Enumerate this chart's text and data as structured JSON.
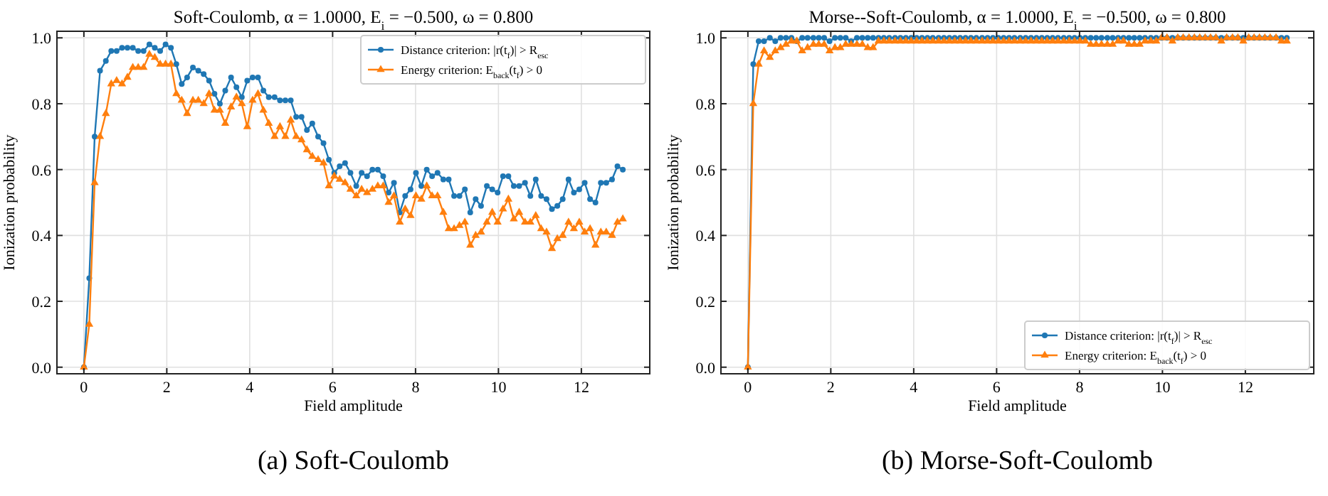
{
  "chart_data": [
    {
      "type": "line",
      "title": "Soft-Coulomb, α = 1.0000, E$_{i}$ = −0.500, ω = 0.800",
      "xlabel": "Field amplitude",
      "ylabel": "Ionization probability",
      "annotations": [
        "(a) Soft-Coulomb"
      ],
      "x": [
        0,
        0.13,
        0.26,
        0.39,
        0.53,
        0.66,
        0.79,
        0.92,
        1.05,
        1.18,
        1.31,
        1.44,
        1.58,
        1.71,
        1.84,
        1.97,
        2.1,
        2.23,
        2.36,
        2.49,
        2.63,
        2.76,
        2.89,
        3.02,
        3.15,
        3.28,
        3.41,
        3.55,
        3.68,
        3.81,
        3.94,
        4.07,
        4.2,
        4.33,
        4.46,
        4.6,
        4.73,
        4.86,
        4.99,
        5.12,
        5.25,
        5.38,
        5.51,
        5.65,
        5.78,
        5.91,
        6.04,
        6.17,
        6.3,
        6.43,
        6.57,
        6.7,
        6.83,
        6.96,
        7.09,
        7.22,
        7.35,
        7.48,
        7.62,
        7.75,
        7.88,
        8.01,
        8.14,
        8.27,
        8.4,
        8.53,
        8.67,
        8.8,
        8.93,
        9.06,
        9.19,
        9.32,
        9.45,
        9.58,
        9.72,
        9.85,
        9.98,
        10.11,
        10.24,
        10.37,
        10.5,
        10.64,
        10.77,
        10.9,
        11.03,
        11.16,
        11.29,
        11.42,
        11.55,
        11.69,
        11.82,
        11.95,
        12.08,
        12.21,
        12.34,
        12.47,
        12.6,
        12.74,
        12.87,
        13.0
      ],
      "series": [
        {
          "name": "Distance criterion: |r(t$_{f}$)| > R$_{esc}$",
          "color": "#1f77b4",
          "marker": "circle",
          "values": [
            0,
            0.27,
            0.7,
            0.9,
            0.93,
            0.96,
            0.96,
            0.97,
            0.97,
            0.97,
            0.96,
            0.96,
            0.98,
            0.97,
            0.96,
            0.98,
            0.97,
            0.92,
            0.86,
            0.88,
            0.91,
            0.9,
            0.89,
            0.87,
            0.83,
            0.8,
            0.84,
            0.88,
            0.85,
            0.82,
            0.87,
            0.88,
            0.88,
            0.84,
            0.82,
            0.82,
            0.81,
            0.81,
            0.81,
            0.76,
            0.76,
            0.72,
            0.74,
            0.7,
            0.68,
            0.63,
            0.59,
            0.61,
            0.62,
            0.59,
            0.55,
            0.59,
            0.58,
            0.6,
            0.6,
            0.58,
            0.53,
            0.56,
            0.47,
            0.52,
            0.54,
            0.59,
            0.55,
            0.6,
            0.58,
            0.59,
            0.57,
            0.57,
            0.52,
            0.52,
            0.54,
            0.47,
            0.51,
            0.49,
            0.55,
            0.54,
            0.53,
            0.58,
            0.58,
            0.55,
            0.55,
            0.56,
            0.52,
            0.57,
            0.52,
            0.51,
            0.48,
            0.49,
            0.51,
            0.57,
            0.53,
            0.54,
            0.56,
            0.51,
            0.5,
            0.56,
            0.56,
            0.57,
            0.61,
            0.6
          ]
        },
        {
          "name": "Energy criterion: E$_{back}$(t$_{f}$) > 0",
          "color": "#ff7f0e",
          "marker": "triangle",
          "values": [
            0,
            0.13,
            0.56,
            0.7,
            0.77,
            0.86,
            0.87,
            0.86,
            0.88,
            0.91,
            0.91,
            0.91,
            0.95,
            0.94,
            0.92,
            0.92,
            0.92,
            0.83,
            0.81,
            0.77,
            0.81,
            0.81,
            0.8,
            0.83,
            0.78,
            0.78,
            0.74,
            0.79,
            0.82,
            0.8,
            0.73,
            0.81,
            0.83,
            0.78,
            0.74,
            0.7,
            0.73,
            0.7,
            0.75,
            0.7,
            0.69,
            0.66,
            0.64,
            0.63,
            0.62,
            0.55,
            0.58,
            0.57,
            0.56,
            0.54,
            0.52,
            0.54,
            0.53,
            0.54,
            0.55,
            0.55,
            0.5,
            0.52,
            0.44,
            0.48,
            0.46,
            0.52,
            0.51,
            0.55,
            0.52,
            0.52,
            0.47,
            0.42,
            0.42,
            0.43,
            0.44,
            0.37,
            0.4,
            0.41,
            0.44,
            0.47,
            0.44,
            0.48,
            0.51,
            0.45,
            0.47,
            0.44,
            0.44,
            0.46,
            0.42,
            0.41,
            0.36,
            0.39,
            0.4,
            0.44,
            0.42,
            0.44,
            0.41,
            0.42,
            0.37,
            0.41,
            0.41,
            0.4,
            0.44,
            0.45
          ]
        }
      ],
      "xlim": [
        -0.65,
        13.65
      ],
      "ylim": [
        -0.02,
        1.02
      ],
      "xticks": [
        0,
        2,
        4,
        6,
        8,
        10,
        12
      ],
      "yticks": [
        {
          "value": 0,
          "label": "0.0"
        },
        {
          "value": 0.2,
          "label": "0.2"
        },
        {
          "value": 0.4,
          "label": "0.4"
        },
        {
          "value": 0.6,
          "label": "0.6"
        },
        {
          "value": 0.8,
          "label": "0.8"
        },
        {
          "value": 1,
          "label": "1.0"
        }
      ],
      "grid": true,
      "legend": "top right",
      "line_style": "solid"
    },
    {
      "type": "line",
      "title": "Morse--Soft-Coulomb, α = 1.0000, E$_{i}$ = −0.500, ω = 0.800",
      "xlabel": "Field amplitude",
      "ylabel": "Ionization probability",
      "annotations": [
        "(b) Morse-Soft-Coulomb"
      ],
      "x": [
        0,
        0.13,
        0.26,
        0.39,
        0.53,
        0.66,
        0.79,
        0.92,
        1.05,
        1.18,
        1.31,
        1.44,
        1.58,
        1.71,
        1.84,
        1.97,
        2.1,
        2.23,
        2.36,
        2.49,
        2.63,
        2.76,
        2.89,
        3.02,
        3.15,
        3.28,
        3.41,
        3.55,
        3.68,
        3.81,
        3.94,
        4.07,
        4.2,
        4.33,
        4.46,
        4.6,
        4.73,
        4.86,
        4.99,
        5.12,
        5.25,
        5.38,
        5.51,
        5.65,
        5.78,
        5.91,
        6.04,
        6.17,
        6.3,
        6.43,
        6.57,
        6.7,
        6.83,
        6.96,
        7.09,
        7.22,
        7.35,
        7.48,
        7.62,
        7.75,
        7.88,
        8.01,
        8.14,
        8.27,
        8.4,
        8.53,
        8.67,
        8.8,
        8.93,
        9.06,
        9.19,
        9.32,
        9.45,
        9.58,
        9.72,
        9.85,
        9.98,
        10.11,
        10.24,
        10.37,
        10.5,
        10.64,
        10.77,
        10.9,
        11.03,
        11.16,
        11.29,
        11.42,
        11.55,
        11.69,
        11.82,
        11.95,
        12.08,
        12.21,
        12.34,
        12.47,
        12.6,
        12.74,
        12.87,
        13.0
      ],
      "series": [
        {
          "name": "Distance criterion: |r(t$_{f}$)| > R$_{esc}$",
          "color": "#1f77b4",
          "marker": "circle",
          "values": [
            0,
            0.92,
            0.99,
            0.99,
            1.0,
            0.99,
            1.0,
            1.0,
            1.0,
            0.99,
            1.0,
            1.0,
            1.0,
            1.0,
            1.0,
            0.99,
            1.0,
            1.0,
            1.0,
            0.99,
            1.0,
            1.0,
            1.0,
            1.0,
            1.0,
            1.0,
            1.0,
            1.0,
            1.0,
            1.0,
            1.0,
            1.0,
            1.0,
            1.0,
            1.0,
            1.0,
            1.0,
            1.0,
            1.0,
            1.0,
            1.0,
            1.0,
            1.0,
            1.0,
            1.0,
            1.0,
            1.0,
            1.0,
            1.0,
            1.0,
            1.0,
            1.0,
            1.0,
            1.0,
            1.0,
            1.0,
            1.0,
            1.0,
            1.0,
            1.0,
            1.0,
            1.0,
            1.0,
            1.0,
            1.0,
            1.0,
            1.0,
            1.0,
            1.0,
            1.0,
            1.0,
            1.0,
            1.0,
            1.0,
            1.0,
            1.0,
            1.0,
            1.0,
            1.0,
            1.0,
            1.0,
            1.0,
            1.0,
            1.0,
            1.0,
            1.0,
            1.0,
            1.0,
            1.0,
            1.0,
            1.0,
            1.0,
            1.0,
            1.0,
            1.0,
            1.0,
            1.0,
            1.0,
            1.0,
            1.0
          ]
        },
        {
          "name": "Energy criterion: E$_{back}$(t$_{f}$) > 0",
          "color": "#ff7f0e",
          "marker": "triangle",
          "values": [
            0,
            0.8,
            0.92,
            0.96,
            0.94,
            0.96,
            0.97,
            0.98,
            0.99,
            0.99,
            0.96,
            0.97,
            0.98,
            0.98,
            0.98,
            0.96,
            0.97,
            0.97,
            0.98,
            0.98,
            0.98,
            0.98,
            0.97,
            0.97,
            0.99,
            0.99,
            0.99,
            0.99,
            0.99,
            0.99,
            0.99,
            0.99,
            0.99,
            0.99,
            0.99,
            0.99,
            0.99,
            0.99,
            0.99,
            0.99,
            0.99,
            0.99,
            0.99,
            0.99,
            0.99,
            0.99,
            0.99,
            0.99,
            0.99,
            0.99,
            0.99,
            0.99,
            0.99,
            0.99,
            0.99,
            0.99,
            0.99,
            0.99,
            0.99,
            0.99,
            0.99,
            0.99,
            0.99,
            0.98,
            0.98,
            0.98,
            0.98,
            0.98,
            0.99,
            0.99,
            0.98,
            0.98,
            0.98,
            0.99,
            0.99,
            0.99,
            1.0,
            1.0,
            0.99,
            1.0,
            1.0,
            1.0,
            1.0,
            1.0,
            1.0,
            1.0,
            1.0,
            0.99,
            1.0,
            1.0,
            1.0,
            0.99,
            1.0,
            1.0,
            1.0,
            1.0,
            1.0,
            1.0,
            0.99,
            0.99
          ]
        }
      ],
      "xlim": [
        -0.65,
        13.65
      ],
      "ylim": [
        -0.02,
        1.02
      ],
      "xticks": [
        0,
        2,
        4,
        6,
        8,
        10,
        12
      ],
      "yticks": [
        {
          "value": 0,
          "label": "0.0"
        },
        {
          "value": 0.2,
          "label": "0.2"
        },
        {
          "value": 0.4,
          "label": "0.4"
        },
        {
          "value": 0.6,
          "label": "0.6"
        },
        {
          "value": 0.8,
          "label": "0.8"
        },
        {
          "value": 1,
          "label": "1.0"
        }
      ],
      "grid": true,
      "legend": "bottom right",
      "line_style": "solid"
    }
  ]
}
